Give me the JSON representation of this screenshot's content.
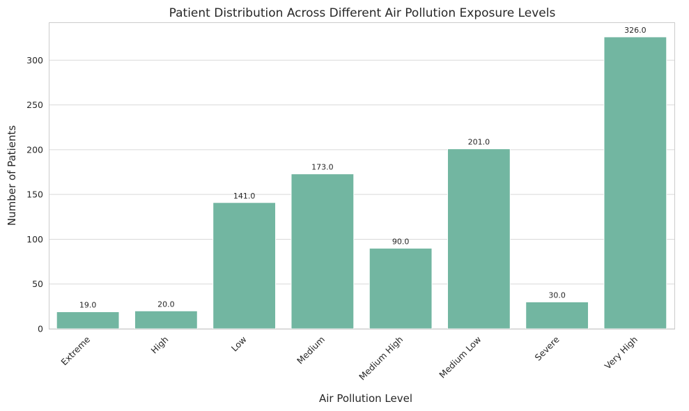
{
  "chart_data": {
    "type": "bar",
    "title": "Patient Distribution Across Different Air Pollution Exposure Levels",
    "xlabel": "Air Pollution Level",
    "ylabel": "Number of Patients",
    "categories": [
      "Extreme",
      "High",
      "Low",
      "Medium",
      "Medium High",
      "Medium Low",
      "Severe",
      "Very High"
    ],
    "values": [
      19,
      20,
      141,
      173,
      90,
      201,
      30,
      326
    ],
    "value_labels": [
      "19.0",
      "20.0",
      "141.0",
      "173.0",
      "90.0",
      "201.0",
      "30.0",
      "326.0"
    ],
    "yticks": [
      0,
      50,
      100,
      150,
      200,
      250,
      300
    ],
    "ylim": [
      0,
      342.3
    ],
    "grid": "horizontal",
    "bar_color": "#72b6a1"
  }
}
